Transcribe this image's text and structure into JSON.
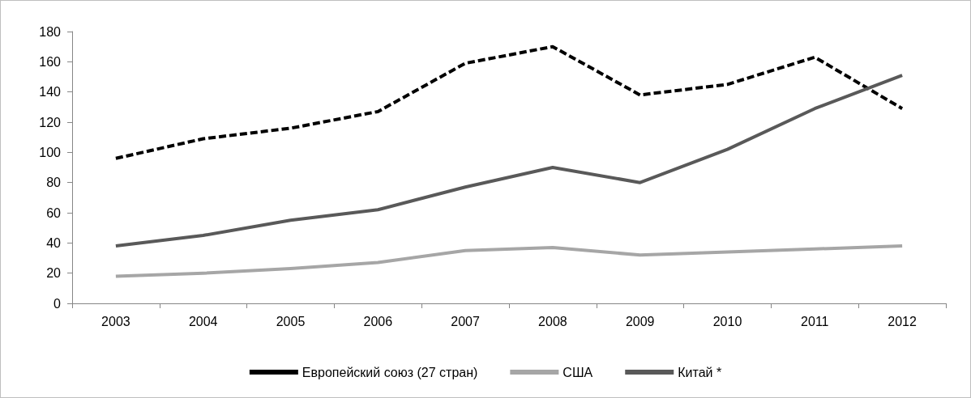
{
  "chart_data": {
    "type": "line",
    "categories": [
      "2003",
      "2004",
      "2005",
      "2006",
      "2007",
      "2008",
      "2009",
      "2010",
      "2011",
      "2012"
    ],
    "series": [
      {
        "name": "Европейский союз (27 стран)",
        "color": "#000000",
        "line_style": "dashed",
        "values": [
          96,
          109,
          116,
          127,
          159,
          170,
          138,
          145,
          163,
          129
        ]
      },
      {
        "name": "США",
        "color": "#a6a6a6",
        "line_style": "solid",
        "values": [
          18,
          20,
          23,
          27,
          35,
          37,
          32,
          34,
          36,
          38
        ]
      },
      {
        "name": "Китай *",
        "color": "#595959",
        "line_style": "solid",
        "values": [
          38,
          45,
          55,
          62,
          77,
          90,
          80,
          102,
          129,
          151
        ]
      }
    ],
    "ylim": [
      0,
      180
    ],
    "yticks": [
      0,
      20,
      40,
      60,
      80,
      100,
      120,
      140,
      160,
      180
    ],
    "grid": false,
    "legend": "bottom",
    "marker": "none"
  }
}
